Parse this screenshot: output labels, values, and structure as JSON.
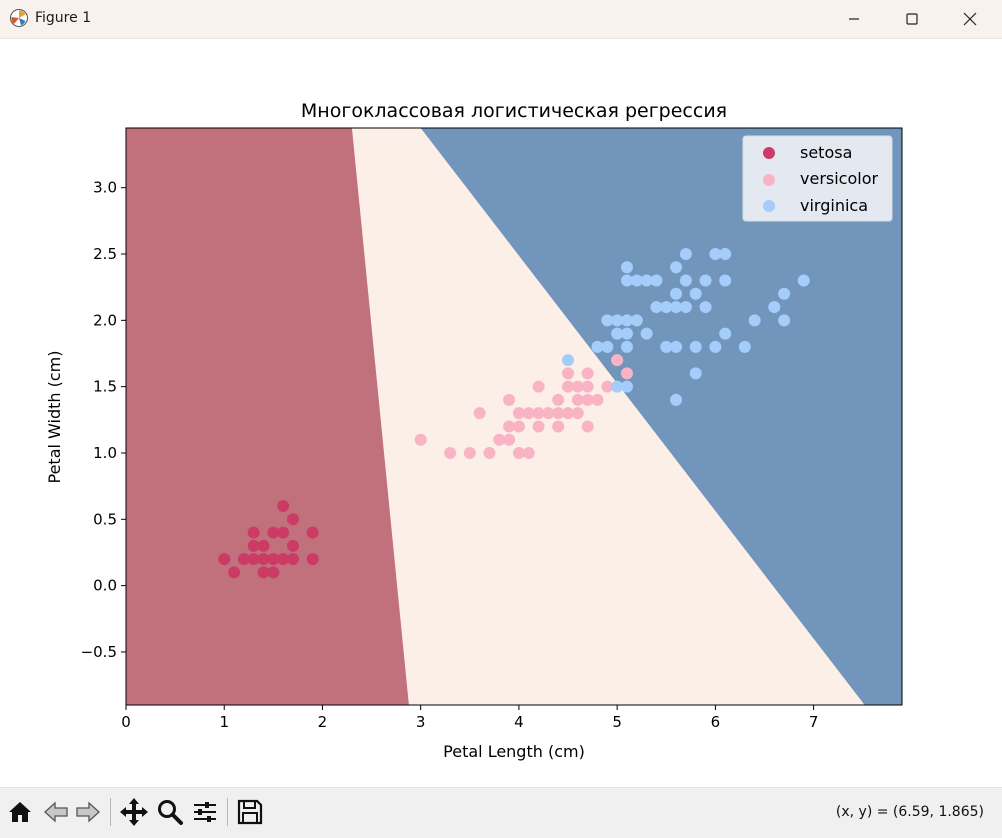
{
  "window": {
    "title": "Figure 1",
    "app_icon": "matplotlib-icon",
    "controls": [
      "minimize-icon",
      "maximize-icon",
      "close-icon"
    ]
  },
  "toolbar": {
    "buttons": [
      "home-icon",
      "back-arrow-icon",
      "forward-arrow-icon",
      "pan-move-icon",
      "zoom-magnifier-icon",
      "configure-subplots-icon",
      "save-disk-icon"
    ],
    "coords_text": "(x, y) = (6.59, 1.865)"
  },
  "colors": {
    "setosa_region": "#c0717c",
    "versicolor_region": "#fcefe7",
    "virginica_region": "#7296bb",
    "setosa_point": "#cc3b66",
    "versicolor_point": "#f8b4c4",
    "virginica_point": "#a4cdfb",
    "legend_bg": "#e4e9f1"
  },
  "chart_data": {
    "type": "scatter",
    "title": "Многоклассовая логистическая регрессия",
    "xlabel": "Petal Length (cm)",
    "ylabel": "Petal Width (cm)",
    "xlim": [
      0,
      7.9
    ],
    "ylim": [
      -0.9,
      3.45
    ],
    "xticks": [
      0,
      1,
      2,
      3,
      4,
      5,
      6,
      7
    ],
    "xtick_labels": [
      "0",
      "1",
      "2",
      "3",
      "4",
      "5",
      "6",
      "7"
    ],
    "yticks": [
      -0.5,
      0.0,
      0.5,
      1.0,
      1.5,
      2.0,
      2.5,
      3.0
    ],
    "ytick_labels": [
      "−0.5",
      "0.0",
      "0.5",
      "1.0",
      "1.5",
      "2.0",
      "2.5",
      "3.0"
    ],
    "legend_position": "top-right",
    "decision_regions": [
      {
        "class": "setosa",
        "boundary_top_x": 2.3,
        "boundary_bottom_x": 2.88
      },
      {
        "class": "versicolor"
      },
      {
        "class": "virginica",
        "boundary_top_x": 3.0,
        "boundary_bottom_x": 7.52
      }
    ],
    "series": [
      {
        "name": "setosa",
        "points": [
          [
            1.0,
            0.2
          ],
          [
            1.1,
            0.1
          ],
          [
            1.2,
            0.2
          ],
          [
            1.3,
            0.2
          ],
          [
            1.3,
            0.3
          ],
          [
            1.3,
            0.4
          ],
          [
            1.4,
            0.1
          ],
          [
            1.4,
            0.2
          ],
          [
            1.4,
            0.3
          ],
          [
            1.5,
            0.1
          ],
          [
            1.5,
            0.2
          ],
          [
            1.5,
            0.4
          ],
          [
            1.6,
            0.2
          ],
          [
            1.6,
            0.4
          ],
          [
            1.6,
            0.6
          ],
          [
            1.7,
            0.2
          ],
          [
            1.7,
            0.3
          ],
          [
            1.7,
            0.5
          ],
          [
            1.9,
            0.2
          ],
          [
            1.9,
            0.4
          ]
        ]
      },
      {
        "name": "versicolor",
        "points": [
          [
            3.0,
            1.1
          ],
          [
            3.3,
            1.0
          ],
          [
            3.5,
            1.0
          ],
          [
            3.6,
            1.3
          ],
          [
            3.7,
            1.0
          ],
          [
            3.8,
            1.1
          ],
          [
            3.9,
            1.1
          ],
          [
            3.9,
            1.2
          ],
          [
            3.9,
            1.4
          ],
          [
            4.0,
            1.0
          ],
          [
            4.0,
            1.2
          ],
          [
            4.0,
            1.3
          ],
          [
            4.1,
            1.0
          ],
          [
            4.1,
            1.3
          ],
          [
            4.2,
            1.2
          ],
          [
            4.2,
            1.3
          ],
          [
            4.2,
            1.5
          ],
          [
            4.3,
            1.3
          ],
          [
            4.4,
            1.2
          ],
          [
            4.4,
            1.3
          ],
          [
            4.4,
            1.4
          ],
          [
            4.5,
            1.3
          ],
          [
            4.5,
            1.5
          ],
          [
            4.5,
            1.6
          ],
          [
            4.6,
            1.3
          ],
          [
            4.6,
            1.4
          ],
          [
            4.6,
            1.5
          ],
          [
            4.7,
            1.2
          ],
          [
            4.7,
            1.4
          ],
          [
            4.7,
            1.5
          ],
          [
            4.7,
            1.6
          ],
          [
            4.8,
            1.4
          ],
          [
            4.9,
            1.5
          ],
          [
            5.0,
            1.7
          ],
          [
            5.1,
            1.6
          ]
        ]
      },
      {
        "name": "virginica",
        "points": [
          [
            4.5,
            1.7
          ],
          [
            4.8,
            1.8
          ],
          [
            4.9,
            1.8
          ],
          [
            4.9,
            2.0
          ],
          [
            5.0,
            1.5
          ],
          [
            5.0,
            1.9
          ],
          [
            5.0,
            2.0
          ],
          [
            5.1,
            1.5
          ],
          [
            5.1,
            1.8
          ],
          [
            5.1,
            1.9
          ],
          [
            5.1,
            2.0
          ],
          [
            5.1,
            2.3
          ],
          [
            5.1,
            2.4
          ],
          [
            5.2,
            2.0
          ],
          [
            5.2,
            2.3
          ],
          [
            5.3,
            1.9
          ],
          [
            5.3,
            2.3
          ],
          [
            5.4,
            2.1
          ],
          [
            5.4,
            2.3
          ],
          [
            5.5,
            1.8
          ],
          [
            5.5,
            2.1
          ],
          [
            5.6,
            1.4
          ],
          [
            5.6,
            1.8
          ],
          [
            5.6,
            2.1
          ],
          [
            5.6,
            2.2
          ],
          [
            5.6,
            2.4
          ],
          [
            5.7,
            2.1
          ],
          [
            5.7,
            2.3
          ],
          [
            5.7,
            2.5
          ],
          [
            5.8,
            1.8
          ],
          [
            5.8,
            2.2
          ],
          [
            5.9,
            2.1
          ],
          [
            5.9,
            2.3
          ],
          [
            6.0,
            1.8
          ],
          [
            6.0,
            2.5
          ],
          [
            6.1,
            1.9
          ],
          [
            6.1,
            2.3
          ],
          [
            6.1,
            2.5
          ],
          [
            6.3,
            1.8
          ],
          [
            6.4,
            2.0
          ],
          [
            6.6,
            2.1
          ],
          [
            6.7,
            2.0
          ],
          [
            6.7,
            2.2
          ],
          [
            6.9,
            2.3
          ],
          [
            5.8,
            1.6
          ]
        ]
      }
    ]
  }
}
